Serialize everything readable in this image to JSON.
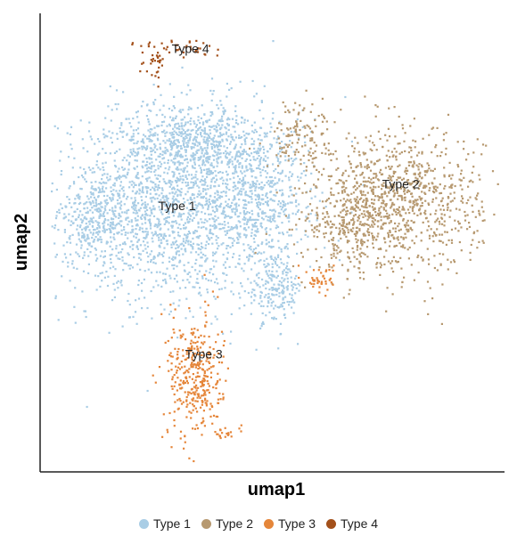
{
  "chart_data": {
    "type": "scatter",
    "xlabel": "umap1",
    "ylabel": "umap2",
    "title": "",
    "xlim": [
      0,
      100
    ],
    "ylim": [
      0,
      100
    ],
    "legend_position": "bottom",
    "grid": false,
    "series": [
      {
        "name": "Type 1",
        "color": "#a9cde5",
        "center": [
          28,
          58
        ],
        "n_points": 3200,
        "label_position": [
          28,
          58
        ],
        "blobs": [
          {
            "cx": 28,
            "cy": 59,
            "sx": 13,
            "sy": 11,
            "w": 0.58
          },
          {
            "cx": 33,
            "cy": 73,
            "sx": 9,
            "sy": 5,
            "w": 0.18
          },
          {
            "cx": 10,
            "cy": 55,
            "sx": 5,
            "sy": 5,
            "w": 0.08
          },
          {
            "cx": 47,
            "cy": 60,
            "sx": 5,
            "sy": 6,
            "w": 0.1
          },
          {
            "cx": 50,
            "cy": 40,
            "sx": 3,
            "sy": 4,
            "w": 0.06
          }
        ]
      },
      {
        "name": "Type 2",
        "color": "#b79970",
        "center": [
          76,
          60
        ],
        "n_points": 1300,
        "label_position": [
          78,
          63
        ],
        "blobs": [
          {
            "cx": 78,
            "cy": 60,
            "sx": 9,
            "sy": 8,
            "w": 0.7
          },
          {
            "cx": 67,
            "cy": 55,
            "sx": 5,
            "sy": 5,
            "w": 0.2
          },
          {
            "cx": 56,
            "cy": 75,
            "sx": 4,
            "sy": 4,
            "w": 0.1
          }
        ]
      },
      {
        "name": "Type 3",
        "color": "#e5863a",
        "center": [
          32,
          22
        ],
        "n_points": 420,
        "label_position": [
          34,
          24
        ],
        "blobs": [
          {
            "cx": 32,
            "cy": 20,
            "sx": 3,
            "sy": 7,
            "w": 0.85
          },
          {
            "cx": 60,
            "cy": 42,
            "sx": 1.5,
            "sy": 1.5,
            "w": 0.1
          },
          {
            "cx": 39,
            "cy": 7,
            "sx": 2,
            "sy": 1,
            "w": 0.05
          }
        ]
      },
      {
        "name": "Type 4",
        "color": "#a3501a",
        "center": [
          28,
          94
        ],
        "n_points": 70,
        "label_position": [
          31,
          94
        ],
        "blobs": [
          {
            "cx": 30,
            "cy": 95,
            "sx": 5,
            "sy": 1.2,
            "w": 0.6
          },
          {
            "cx": 23,
            "cy": 91,
            "sx": 1.5,
            "sy": 2,
            "w": 0.4
          }
        ]
      }
    ]
  },
  "legend": {
    "items": [
      {
        "label": "Type 1",
        "color": "#a9cde5"
      },
      {
        "label": "Type 2",
        "color": "#b79970"
      },
      {
        "label": "Type 3",
        "color": "#e5863a"
      },
      {
        "label": "Type 4",
        "color": "#a3501a"
      }
    ]
  }
}
